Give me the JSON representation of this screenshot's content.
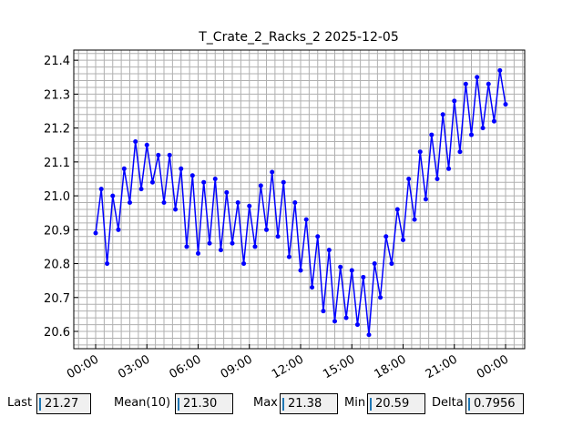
{
  "chart_data": {
    "type": "line",
    "title": "T_Crate_2_Racks_2 2025-12-05",
    "x": [
      0,
      0.33,
      0.67,
      1,
      1.33,
      1.67,
      2,
      2.33,
      2.67,
      3,
      3.33,
      3.67,
      4,
      4.33,
      4.67,
      5,
      5.33,
      5.67,
      6,
      6.33,
      6.67,
      7,
      7.33,
      7.67,
      8,
      8.33,
      8.67,
      9,
      9.33,
      9.67,
      10,
      10.33,
      10.67,
      11,
      11.33,
      11.67,
      12,
      12.33,
      12.67,
      13,
      13.33,
      13.67,
      14,
      14.33,
      14.67,
      15,
      15.33,
      15.67,
      16,
      16.33,
      16.67,
      17,
      17.33,
      17.67,
      18,
      18.33,
      18.67,
      19,
      19.33,
      19.67,
      20,
      20.33,
      20.67,
      21,
      21.33,
      21.67,
      22,
      22.33,
      22.67,
      23,
      23.33,
      23.67,
      24
    ],
    "series": [
      {
        "color": "#0000ff",
        "values": [
          20.89,
          21.02,
          20.8,
          21.0,
          20.9,
          21.08,
          20.98,
          21.16,
          21.02,
          21.15,
          21.04,
          21.12,
          20.98,
          21.12,
          20.96,
          21.08,
          20.85,
          21.06,
          20.83,
          21.04,
          20.86,
          21.05,
          20.84,
          21.01,
          20.86,
          20.98,
          20.8,
          20.97,
          20.85,
          21.03,
          20.9,
          21.07,
          20.88,
          21.04,
          20.82,
          20.98,
          20.78,
          20.93,
          20.73,
          20.88,
          20.66,
          20.84,
          20.63,
          20.79,
          20.64,
          20.78,
          20.62,
          20.76,
          20.59,
          20.8,
          20.7,
          20.88,
          20.8,
          20.96,
          20.87,
          21.05,
          20.93,
          21.13,
          20.99,
          21.18,
          21.05,
          21.24,
          21.08,
          21.28,
          21.13,
          21.33,
          21.18,
          21.35,
          21.2,
          21.33,
          21.22,
          21.37,
          21.27
        ]
      }
    ],
    "xlim": [
      -1.28,
      25.12
    ],
    "ylim": [
      20.549,
      21.43
    ],
    "xticks": [
      {
        "value": 0,
        "label": "00:00"
      },
      {
        "value": 3,
        "label": "03:00"
      },
      {
        "value": 6,
        "label": "06:00"
      },
      {
        "value": 9,
        "label": "09:00"
      },
      {
        "value": 12,
        "label": "12:00"
      },
      {
        "value": 15,
        "label": "15:00"
      },
      {
        "value": 18,
        "label": "18:00"
      },
      {
        "value": 21,
        "label": "21:00"
      },
      {
        "value": 24,
        "label": "00:00"
      }
    ],
    "yticks": [
      20.6,
      20.7,
      20.8,
      20.9,
      {
        "value": 21,
        "label": "21.0"
      },
      21.1,
      21.2,
      21.3,
      21.4
    ],
    "minor_xticks": [
      -1,
      -0.5,
      0.5,
      1,
      1.5,
      2,
      2.5,
      3.5,
      4,
      4.5,
      5,
      5.5,
      6.5,
      7,
      7.5,
      8,
      8.5,
      9.5,
      10,
      10.5,
      11,
      11.5,
      12.5,
      13,
      13.5,
      14,
      14.5,
      15.5,
      16,
      16.5,
      17,
      17.5,
      18.5,
      19,
      19.5,
      20,
      20.5,
      21.5,
      22,
      22.5,
      23,
      23.5,
      24.5,
      25
    ],
    "minor_yticks": [
      20.56,
      20.58,
      20.62,
      20.64,
      20.66,
      20.68,
      20.72,
      20.74,
      20.76,
      20.78,
      20.82,
      20.84,
      20.86,
      20.88,
      20.92,
      20.94,
      20.96,
      20.98,
      21.02,
      21.04,
      21.06,
      21.08,
      21.12,
      21.14,
      21.16,
      21.18,
      21.22,
      21.24,
      21.26,
      21.28,
      21.32,
      21.34,
      21.36,
      21.38,
      21.42
    ],
    "grid": true
  },
  "widgets": [
    {
      "label": "Last",
      "value": "21.27"
    },
    {
      "label": "Mean(10)",
      "value": "21.30"
    },
    {
      "label": "Max",
      "value": "21.38"
    },
    {
      "label": "Min",
      "value": "20.59"
    },
    {
      "label": "Delta",
      "value": "0.7956"
    }
  ]
}
